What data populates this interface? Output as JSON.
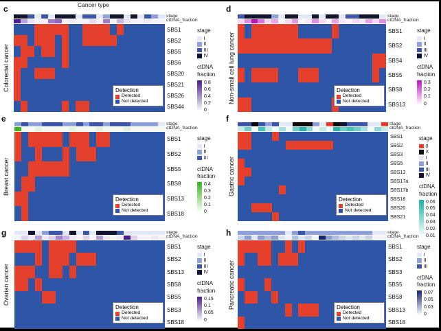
{
  "chart_data": {
    "type": "heatmap",
    "figure_title": "Cancer type",
    "colors": {
      "detected": "#e4402c",
      "not_detected": "#2e55a6",
      "stage": {
        "0": "#e4402c",
        "X": "#0a0a0a",
        "I": "#e4e7f5",
        "II": "#8fa1d8",
        "III": "#3d56a8",
        "IV": "#12142f"
      }
    },
    "annotation_labels": {
      "stage": "stage",
      "ctdna": "ctDNA_fraction"
    },
    "stage_legend_title": "stage",
    "ctdna_legend_title_line1": "ctDNA",
    "ctdna_legend_title_line2": "fraction",
    "detection_legend": {
      "title": "Detection",
      "detected": "Detected",
      "not_detected": "Not detected"
    },
    "panels": [
      {
        "letter": "c",
        "cancer": "Colorectal cancer",
        "rows": [
          "SBS1",
          "SBS2",
          "SBS5",
          "SBS6",
          "SBS20",
          "SBS21",
          "SBS26",
          "SBS44"
        ],
        "grid": [
          "0001111100111101000000",
          "1101110100111110000000",
          "0110110100000000000000",
          "1100000100000000000000",
          "1001110000000000000000",
          "1000000000000000000000",
          "1000000000000000000000",
          "0100000101100000000000"
        ],
        "stage_bar": [
          "IV",
          "IV",
          "III",
          "I",
          "III",
          "I",
          "IV",
          "IV",
          "IV",
          "I",
          "III",
          "III",
          "I",
          "II",
          "IV",
          "IV",
          "I",
          "IV",
          "I",
          "III",
          "II",
          "I"
        ],
        "ctdna_bar": [
          "#4b1f8e",
          "#b9a3d9",
          "#e9e2f5",
          "#f4f1fa",
          "#f4f1fa",
          "#9b7cc9",
          "#8a66c0",
          "#f4f1fa",
          "#eee8f7",
          "#f4f1fa",
          "#f4f1fa",
          "#e4dbf1",
          "#f4f1fa",
          "#9b7cc9",
          "#f4f1fa",
          "#c9b8e3",
          "#e9e2f5",
          "#f4f1fa",
          "#f4f1fa",
          "#eee8f7",
          "#f4f1fa",
          "#f4f1fa"
        ],
        "stage_legend": [
          "I",
          "II",
          "III",
          "IV"
        ],
        "ctdna_ticks": [
          "0.8",
          "0.6",
          "0.4",
          "0.2",
          "0"
        ],
        "ctdna_color": "#4a1d8c"
      },
      {
        "letter": "d",
        "cancer": "Non-small cell lung cancer",
        "rows": [
          "SBS1",
          "SBS2",
          "SBS4",
          "SBS5",
          "SBS8",
          "SBS13"
        ],
        "grid": [
          "1011111110000010000000",
          "1111111111111100000000",
          "0000000000000000000011",
          "1011110001110000000010",
          "0000000000000000000000",
          "1100000000000010000000"
        ],
        "stage_bar": [
          "III",
          "IV",
          "IV",
          "IV",
          "IV",
          "II",
          "I",
          "IV",
          "IV",
          "I",
          "I",
          "IV",
          "I",
          "IV",
          "IV",
          "I",
          "III",
          "III",
          "IV",
          "IV",
          "IV",
          "I"
        ],
        "ctdna_bar": [
          "#f3d9f3",
          "#df8ddf",
          "#b517b5",
          "#d977d9",
          "#f3d9f3",
          "#e6a3e6",
          "#fdf4fd",
          "#f3d9f3",
          "#e09be0",
          "#fdf4fd",
          "#f8e7f8",
          "#df8ddf",
          "#f3d9f3",
          "#fdf4fd",
          "#e6a3e6",
          "#f8e7f8",
          "#fdf4fd",
          "#f3d9f3",
          "#f8e7f8",
          "#e6a3e6",
          "#f3d9f3",
          "#df8ddf"
        ],
        "stage_legend": [
          "I",
          "II",
          "III",
          "IV"
        ],
        "ctdna_ticks": [
          "0.3",
          "0.2",
          "0.1",
          "0"
        ],
        "ctdna_color": "#bb16bb"
      },
      {
        "letter": "e",
        "cancer": "Breast cancer",
        "rows": [
          "SBS1",
          "SBS2",
          "SBS5",
          "SBS8",
          "SBS13",
          "SBS18"
        ],
        "grid": [
          "1011111011101100000000",
          "1001000101110000000000",
          "0011111100000000000000",
          "0110000000000000000000",
          "1100000000000000000000",
          "0100000000000000000000"
        ],
        "stage_bar": [
          "II",
          "III",
          "II",
          "II",
          "III",
          "III",
          "III",
          "II",
          "II",
          "III",
          "II",
          "III",
          "III",
          "II",
          "III",
          "III",
          "III",
          "II",
          "II",
          "II",
          "II",
          "I"
        ],
        "ctdna_bar": [
          "#3fb51d",
          "#f3f9f1",
          "#f3f9f1",
          "#e3f2de",
          "#f3f9f1",
          "#f3f9f1",
          "#f3f9f1",
          "#f3f9f1",
          "#e3f2de",
          "#f3f9f1",
          "#f3f9f1",
          "#f3f9f1",
          "#e3f2de",
          "#f3f9f1",
          "#f3f9f1",
          "#f3f9f1",
          "#e3f2de",
          "#f3f9f1",
          "#f3f9f1",
          "#f3f9f1",
          "#f3f9f1",
          "#f3f9f1"
        ],
        "stage_legend": [
          "I",
          "II",
          "III"
        ],
        "ctdna_ticks": [
          "0.4",
          "0.3",
          "0.2",
          "0.1",
          "0"
        ],
        "ctdna_color": "#3cb51e"
      },
      {
        "letter": "f",
        "cancer": "Gastric cancer",
        "rows": [
          "SBS1",
          "SBS2",
          "SBS3",
          "SBS5",
          "SBS13",
          "SBS17a",
          "SBS17b",
          "SBS18",
          "SBS20",
          "SBS21"
        ],
        "grid": [
          "1100010000000000000000",
          "1100000111111100000000",
          "0000000000000000000000",
          "1000000000000000000000",
          "1100000000000000000000",
          "1000000000000000000000",
          "0000001000000000000000",
          "0000000000000000000000",
          "0011100000000000000000",
          "0000010000000000000000"
        ],
        "stage_bar": [
          "III",
          "III",
          "X",
          "III",
          "II",
          "III",
          "I",
          "I",
          "X",
          "X",
          "X",
          "II",
          "I",
          "0",
          "X",
          "IV",
          "III",
          "III",
          "III",
          "I",
          "I",
          "0"
        ],
        "ctdna_bar": [
          "#c4ebe8",
          "#6fd1ca",
          "#f2fafa",
          "#45c4bb",
          "#c4ebe8",
          "#f2fafa",
          "#a5e2dd",
          "#f2fafa",
          "#6fd1ca",
          "#2ab5ac",
          "#8cdad4",
          "#f2fafa",
          "#c4ebe8",
          "#f2fafa",
          "#2ab5ac",
          "#6fd1ca",
          "#45c4bb",
          "#6fd1ca",
          "#a5e2dd",
          "#f2fafa",
          "#8cdad4",
          "#c4ebe8"
        ],
        "stage_legend": [
          "0",
          "X",
          "I",
          "II",
          "III",
          "IV"
        ],
        "ctdna_ticks": [
          "0.06",
          "0.05",
          "0.04",
          "0.03",
          "0.02",
          "0.01"
        ],
        "ctdna_color": "#17b3a8"
      },
      {
        "letter": "g",
        "cancer": "Ovarian cancer",
        "rows": [
          "SBS1",
          "SBS2",
          "SBS13",
          "SBS8",
          "SBS5",
          "SBS3",
          "SBS18"
        ],
        "grid": [
          "1111011110000000000000",
          "0001011101110000000000",
          "1110011010000000000000",
          "1101000000000000000000",
          "0000110000000000000000",
          "0000000000000000000000",
          "0000000000000000000000"
        ],
        "stage_bar": [
          "I",
          "I",
          "IV",
          "I",
          "II",
          "III",
          "III",
          "I",
          "IV",
          "I",
          "III",
          "I",
          "IV",
          "IV",
          "IV",
          "III",
          "I",
          "I",
          "I",
          "I",
          "I",
          "I"
        ],
        "ctdna_bar": [
          "#f6f3fa",
          "#ddd0ee",
          "#eee8f6",
          "#b79ad8",
          "#eee8f6",
          "#ddd0ee",
          "#a683cf",
          "#c9b3e2",
          "#eee8f6",
          "#f6f3fa",
          "#ddd0ee",
          "#f6f3fa",
          "#b79ad8",
          "#eee8f6",
          "#f6f3fa",
          "#eee8f6",
          "#4a1f8e",
          "#ddd0ee",
          "#f6f3fa",
          "#f6f3fa",
          "#eee8f6",
          "#f6f3fa"
        ],
        "stage_legend": [
          "I",
          "II",
          "III",
          "IV"
        ],
        "ctdna_ticks": [
          "0.15",
          "0.1",
          "0.05",
          "0"
        ],
        "ctdna_color": "#4a1d8c"
      },
      {
        "letter": "h",
        "cancer": "Pancreatic cancer",
        "rows": [
          "SBS1",
          "SBS2",
          "SBS3",
          "SBS5",
          "SBS8",
          "SBS13",
          "SBS18"
        ],
        "grid": [
          "1111100101000000000000",
          "1001101110000000000000",
          "0000000000000000000000",
          "1000100000000000000000",
          "0110010000000000000000",
          "0000000101110000000000",
          "1000000000000000000000"
        ],
        "stage_bar": [
          "II",
          "II",
          "II",
          "II",
          "II",
          "II",
          "II",
          "I",
          "II",
          "III",
          "II",
          "II",
          "II",
          "II",
          "II",
          "II",
          "II",
          "II",
          "II",
          "II",
          "I",
          "I"
        ],
        "ctdna_bar": [
          "#c9d2ea",
          "#8b9cd1",
          "#dfe5f3",
          "#8b9cd1",
          "#aebce0",
          "#8b9cd1",
          "#dfe5f3",
          "#f2f4fa",
          "#aebce0",
          "#dfe5f3",
          "#c9d2ea",
          "#f2f4fa",
          "#16246b",
          "#8b9cd1",
          "#aebce0",
          "#c9d2ea",
          "#dfe5f3",
          "#c9d2ea",
          "#dfe5f3",
          "#c9d2ea",
          "#f2f4fa",
          "#f2f4fa"
        ],
        "stage_legend": [
          "I",
          "II",
          "III"
        ],
        "ctdna_ticks": [
          "0.07",
          "0.05",
          "0.03",
          "0"
        ],
        "ctdna_color": "#16246b"
      }
    ]
  }
}
